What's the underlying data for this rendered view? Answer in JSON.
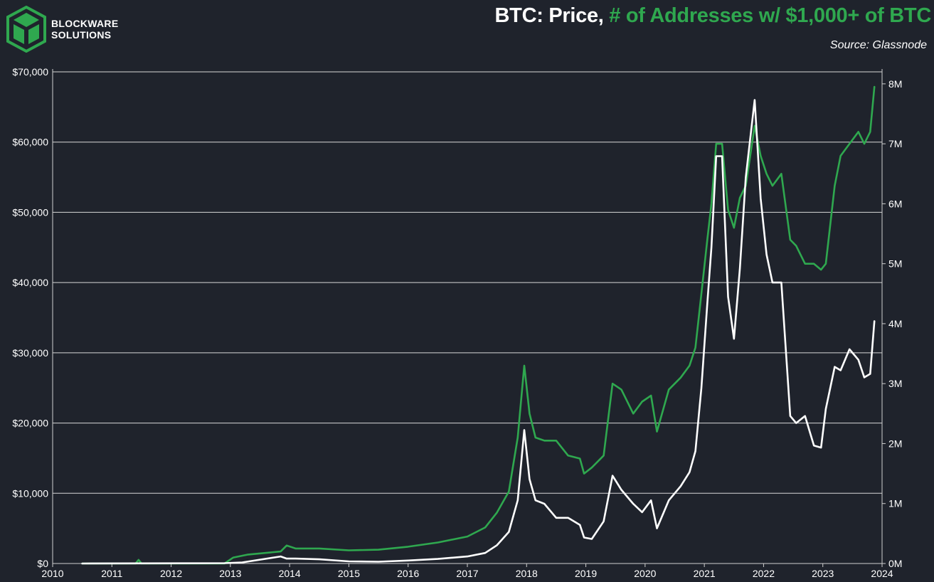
{
  "brand": {
    "line1": "BLOCKWARE",
    "line2": "SOLUTIONS",
    "logo_icon": "blockware-cube-logo",
    "logo_color": "#2fa84f"
  },
  "header": {
    "title_part1": "BTC: Price,",
    "title_part2": " # of Addresses w/ $1,000+ of BTC",
    "source": "Source: Glassnode"
  },
  "chart_data": {
    "type": "line",
    "background": "#1f232c",
    "grid": true,
    "xlim": [
      2010,
      2024
    ],
    "x_ticks": [
      "2010",
      "2011",
      "2012",
      "2013",
      "2014",
      "2015",
      "2016",
      "2017",
      "2018",
      "2019",
      "2020",
      "2021",
      "2022",
      "2023",
      "2024"
    ],
    "y_left": {
      "ylim": [
        0,
        70000
      ],
      "ticks": [
        "$0",
        "$10,000",
        "$20,000",
        "$30,000",
        "$40,000",
        "$50,000",
        "$60,000",
        "$70,000"
      ]
    },
    "y_right": {
      "ylim": [
        0,
        8200000
      ],
      "ticks": [
        "0M",
        "1M",
        "2M",
        "3M",
        "4M",
        "5M",
        "6M",
        "7M",
        "8M"
      ]
    },
    "series": [
      {
        "axis": "left",
        "color": "#ffffff",
        "x": [
          2010.5,
          2012.9,
          2013.2,
          2013.85,
          2013.95,
          2014.1,
          2014.5,
          2015.0,
          2015.5,
          2016.0,
          2016.5,
          2017.0,
          2017.3,
          2017.5,
          2017.7,
          2017.85,
          2017.96,
          2018.05,
          2018.15,
          2018.3,
          2018.5,
          2018.7,
          2018.9,
          2018.97,
          2019.1,
          2019.3,
          2019.45,
          2019.6,
          2019.8,
          2019.95,
          2020.1,
          2020.2,
          2020.4,
          2020.6,
          2020.75,
          2020.85,
          2020.95,
          2021.05,
          2021.12,
          2021.2,
          2021.3,
          2021.4,
          2021.5,
          2021.6,
          2021.7,
          2021.85,
          2021.95,
          2022.05,
          2022.15,
          2022.3,
          2022.45,
          2022.55,
          2022.7,
          2022.85,
          2022.97,
          2023.05,
          2023.2,
          2023.3,
          2023.45,
          2023.6,
          2023.7,
          2023.8,
          2023.87
        ],
        "y": [
          0,
          50,
          150,
          1000,
          700,
          700,
          600,
          300,
          250,
          430,
          650,
          1000,
          1500,
          2600,
          4500,
          9000,
          19000,
          12000,
          9000,
          8500,
          6500,
          6500,
          5500,
          3700,
          3500,
          6000,
          12500,
          10500,
          8500,
          7300,
          9000,
          5000,
          9000,
          11000,
          13000,
          16000,
          25000,
          37000,
          45000,
          58000,
          58000,
          38000,
          32000,
          42000,
          55000,
          66000,
          52000,
          44000,
          40000,
          40000,
          21000,
          20000,
          21000,
          16800,
          16500,
          22000,
          28000,
          27500,
          30500,
          29000,
          26500,
          27000,
          34500
        ]
      },
      {
        "axis": "right",
        "color": "#2fa84f",
        "x": [
          2010.5,
          2011.4,
          2011.45,
          2011.5,
          2012.9,
          2013.05,
          2013.3,
          2013.85,
          2013.95,
          2014.1,
          2014.5,
          2015.0,
          2015.5,
          2016.0,
          2016.5,
          2017.0,
          2017.3,
          2017.5,
          2017.7,
          2017.85,
          2017.96,
          2018.05,
          2018.15,
          2018.3,
          2018.5,
          2018.7,
          2018.9,
          2018.97,
          2019.1,
          2019.3,
          2019.45,
          2019.6,
          2019.8,
          2019.95,
          2020.1,
          2020.2,
          2020.4,
          2020.6,
          2020.75,
          2020.85,
          2020.95,
          2021.05,
          2021.12,
          2021.2,
          2021.3,
          2021.4,
          2021.5,
          2021.6,
          2021.7,
          2021.85,
          2021.95,
          2022.05,
          2022.15,
          2022.3,
          2022.45,
          2022.55,
          2022.7,
          2022.85,
          2022.97,
          2023.05,
          2023.2,
          2023.3,
          2023.45,
          2023.6,
          2023.7,
          2023.8,
          2023.87
        ],
        "y": [
          0,
          0,
          60000,
          0,
          0,
          100000,
          150000,
          200000,
          300000,
          250000,
          250000,
          220000,
          230000,
          280000,
          350000,
          450000,
          600000,
          850000,
          1200000,
          2100000,
          3300000,
          2500000,
          2100000,
          2050000,
          2050000,
          1800000,
          1750000,
          1500000,
          1600000,
          1800000,
          3000000,
          2900000,
          2500000,
          2700000,
          2800000,
          2200000,
          2900000,
          3100000,
          3300000,
          3600000,
          4500000,
          5400000,
          6000000,
          7000000,
          7000000,
          5900000,
          5600000,
          6100000,
          6300000,
          7300000,
          6800000,
          6500000,
          6300000,
          6500000,
          5400000,
          5300000,
          5000000,
          5000000,
          4900000,
          5000000,
          6300000,
          6800000,
          7000000,
          7200000,
          7000000,
          7200000,
          7950000
        ]
      }
    ]
  }
}
